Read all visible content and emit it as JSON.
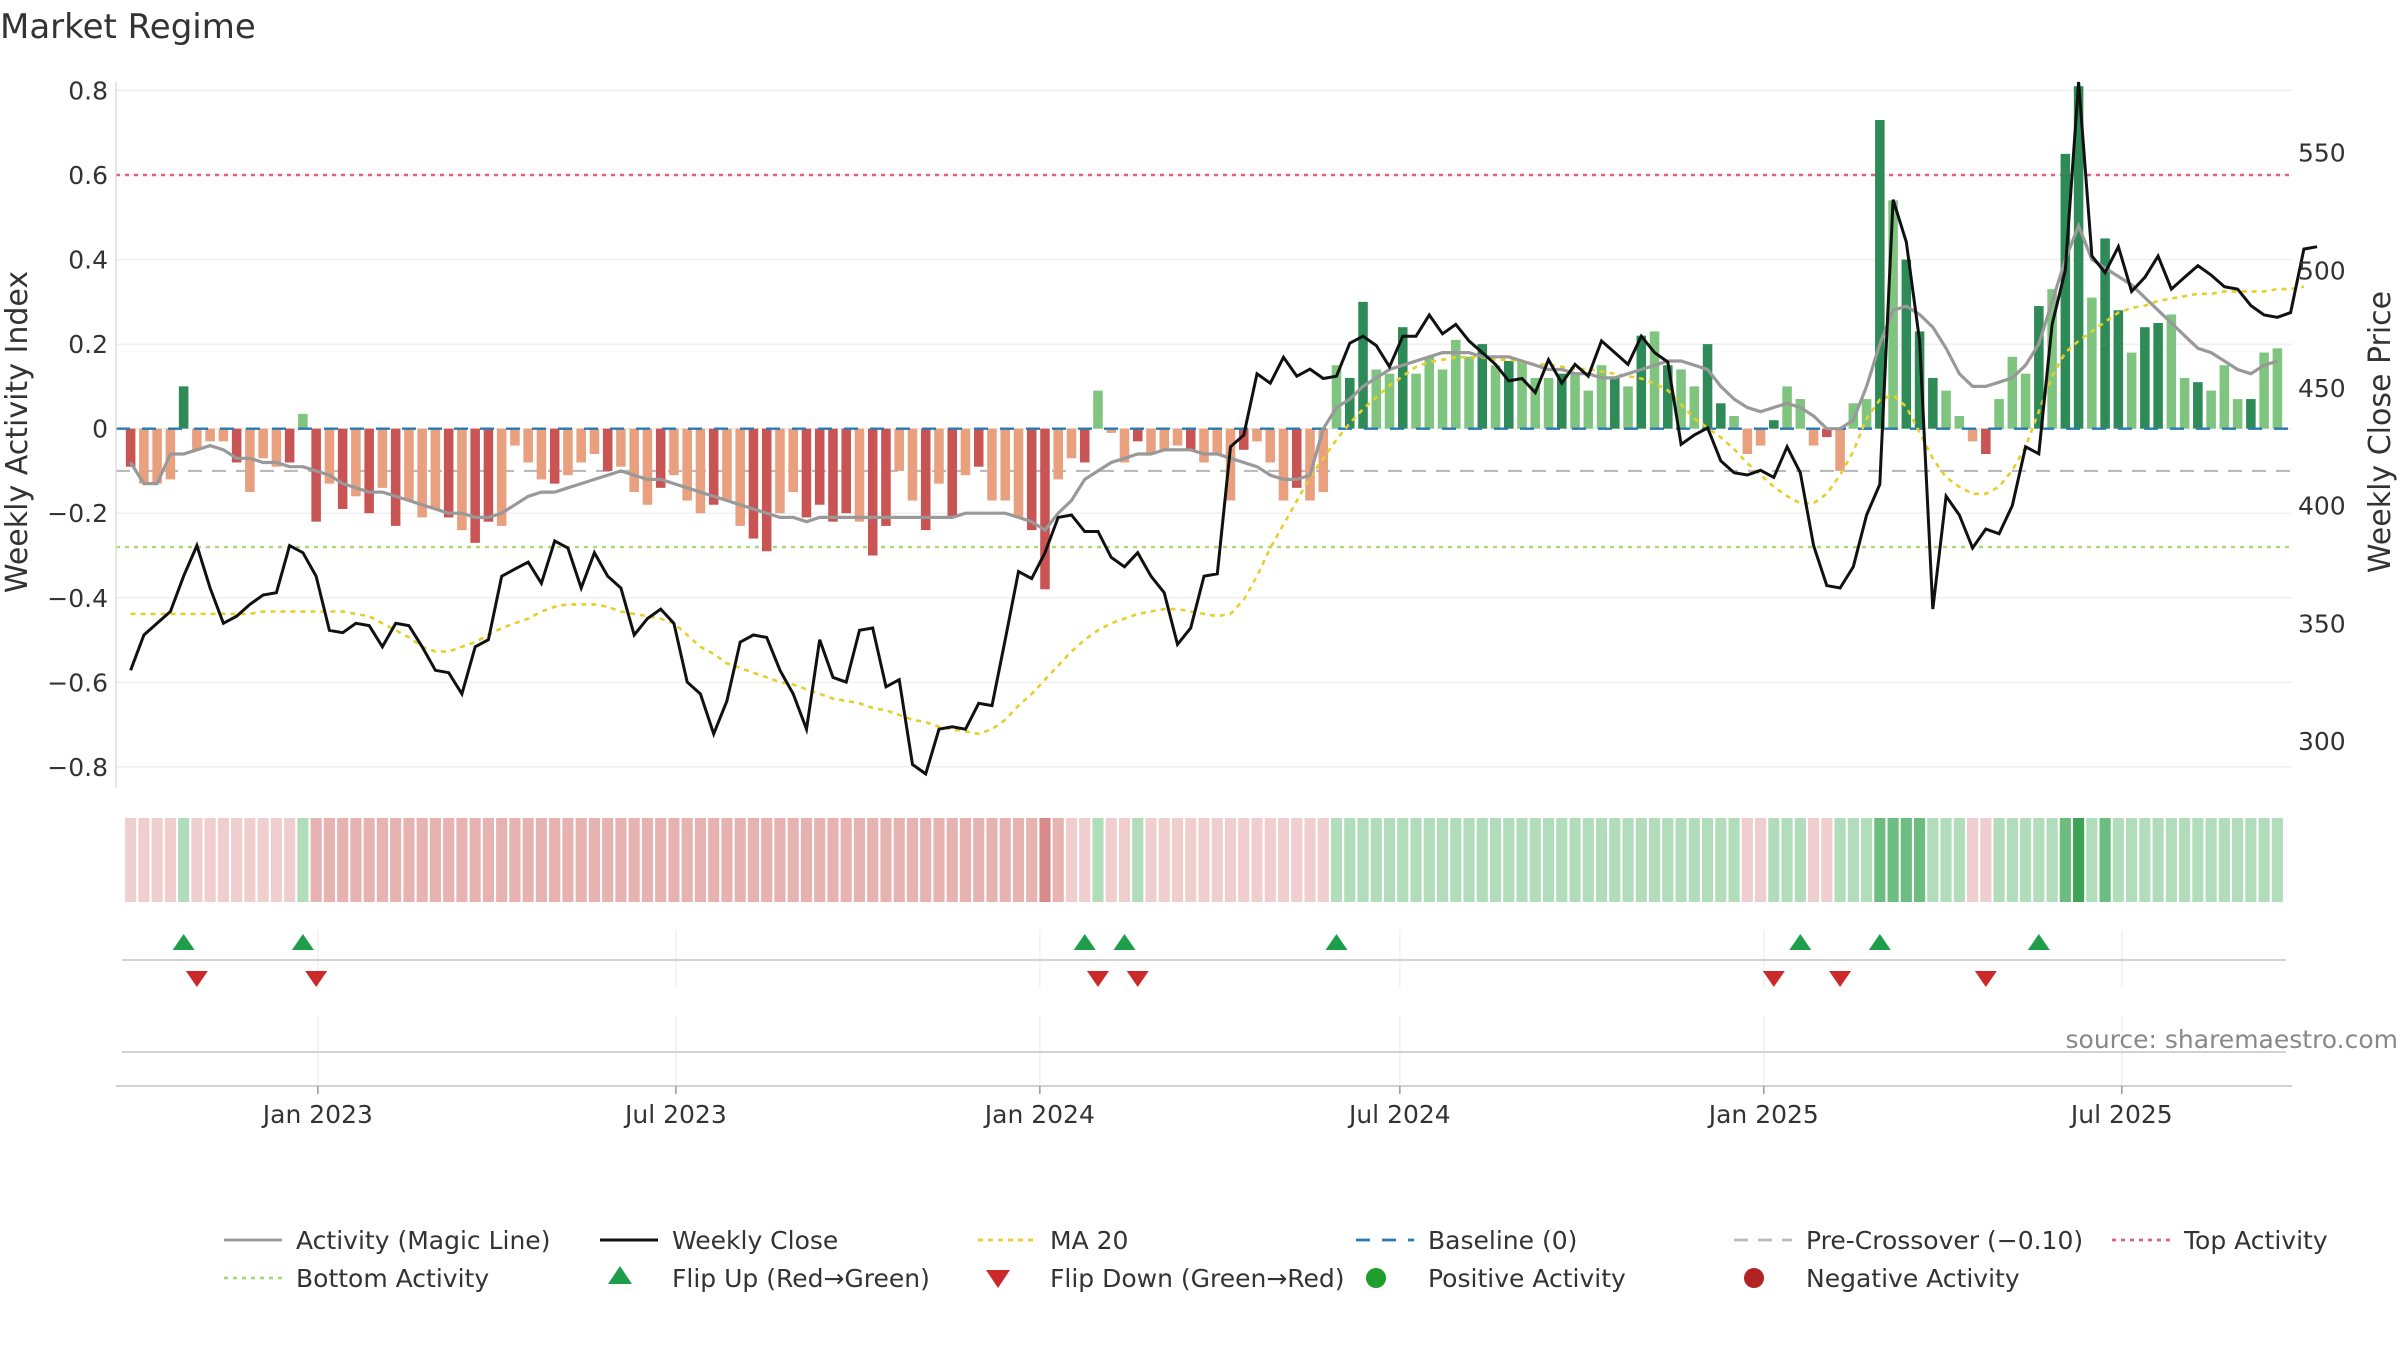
{
  "chart_data": {
    "type": "bar",
    "title": "Market Regime",
    "ylabel_left": "Weekly Activity Index",
    "ylabel_right": "Weekly Close Price",
    "source": "source: sharemaestro.com",
    "x_start": "2022-09-25",
    "x_end": "2025-09-21",
    "x_ticks": [
      {
        "date": "2023-01-01",
        "label": "Jan 2023"
      },
      {
        "date": "2023-07-01",
        "label": "Jul 2023"
      },
      {
        "date": "2024-01-01",
        "label": "Jan 2024"
      },
      {
        "date": "2024-07-01",
        "label": "Jul 2024"
      },
      {
        "date": "2025-01-01",
        "label": "Jan 2025"
      },
      {
        "date": "2025-07-01",
        "label": "Jul 2025"
      }
    ],
    "ylim_left": [
      -0.85,
      0.82
    ],
    "ylim_right": [
      280,
      580
    ],
    "yticks_left": [
      {
        "v": 0.8,
        "label": "0.8"
      },
      {
        "v": 0.6,
        "label": "0.6"
      },
      {
        "v": 0.4,
        "label": "0.4"
      },
      {
        "v": 0.2,
        "label": "0.2"
      },
      {
        "v": 0,
        "label": "0"
      },
      {
        "v": -0.2,
        "label": "−0.2"
      },
      {
        "v": -0.4,
        "label": "−0.4"
      },
      {
        "v": -0.6,
        "label": "−0.6"
      },
      {
        "v": -0.8,
        "label": "−0.8"
      }
    ],
    "yticks_right": [
      {
        "v": 550,
        "label": "550"
      },
      {
        "v": 500,
        "label": "500"
      },
      {
        "v": 450,
        "label": "450"
      },
      {
        "v": 400,
        "label": "400"
      },
      {
        "v": 350,
        "label": "350"
      },
      {
        "v": 300,
        "label": "300"
      }
    ],
    "thresholds": {
      "top_activity": 0.6,
      "bottom_activity": -0.28,
      "pre_crossover": -0.1,
      "baseline": 0
    },
    "colors": {
      "pos_strong": "#2e8b57",
      "pos_light": "#7fc47f",
      "neg_strong": "#c95454",
      "neg_light": "#e8a07e",
      "close": "#111111",
      "magic": "#999999",
      "ma20": "#e6cf2a",
      "baseline": "#2a7ab0",
      "precross": "#bbbbbb",
      "top": "#e0607e",
      "bottom": "#a8d878",
      "flip_up": "#1e9e4a",
      "flip_down": "#cc2a2a",
      "pos_dot": "#1e9e2a",
      "neg_dot": "#b22222"
    },
    "activity": [
      -0.09,
      -0.13,
      -0.13,
      -0.12,
      0.1,
      -0.05,
      -0.03,
      -0.03,
      -0.08,
      -0.15,
      -0.07,
      -0.09,
      -0.08,
      0.035,
      -0.22,
      -0.13,
      -0.19,
      -0.16,
      -0.2,
      -0.14,
      -0.23,
      -0.17,
      -0.21,
      -0.19,
      -0.21,
      -0.24,
      -0.27,
      -0.22,
      -0.23,
      -0.04,
      -0.08,
      -0.12,
      -0.13,
      -0.11,
      -0.08,
      -0.06,
      -0.1,
      -0.09,
      -0.15,
      -0.18,
      -0.14,
      -0.11,
      -0.17,
      -0.2,
      -0.18,
      -0.17,
      -0.23,
      -0.26,
      -0.29,
      -0.2,
      -0.15,
      -0.21,
      -0.18,
      -0.22,
      -0.2,
      -0.22,
      -0.3,
      -0.23,
      -0.1,
      -0.17,
      -0.24,
      -0.13,
      -0.21,
      -0.11,
      -0.09,
      -0.17,
      -0.17,
      -0.21,
      -0.24,
      -0.38,
      -0.12,
      -0.07,
      -0.08,
      0.09,
      -0.01,
      -0.08,
      -0.03,
      -0.06,
      -0.05,
      -0.04,
      -0.05,
      -0.08,
      -0.06,
      -0.17,
      -0.05,
      -0.03,
      -0.08,
      -0.17,
      -0.14,
      -0.17,
      -0.15,
      0.15,
      0.12,
      0.3,
      0.14,
      0.13,
      0.24,
      0.13,
      0.17,
      0.14,
      0.21,
      0.17,
      0.2,
      0.15,
      0.16,
      0.16,
      0.12,
      0.12,
      0.13,
      0.13,
      0.09,
      0.15,
      0.12,
      0.1,
      0.22,
      0.23,
      0.15,
      0.14,
      0.1,
      0.2,
      0.06,
      0.03,
      -0.06,
      -0.04,
      0.02,
      0.1,
      0.07,
      -0.04,
      -0.02,
      -0.1,
      0.06,
      0.07,
      0.73,
      0.54,
      0.4,
      0.23,
      0.12,
      0.09,
      0.03,
      -0.03,
      -0.06,
      0.07,
      0.17,
      0.13,
      0.29,
      0.33,
      0.65,
      0.81,
      0.31,
      0.45,
      0.28,
      0.18,
      0.24,
      0.25,
      0.27,
      0.12,
      0.11,
      0.09,
      0.15,
      0.07,
      0.07,
      0.18,
      0.19
    ],
    "close": [
      330,
      345,
      350,
      355,
      370,
      383,
      365,
      350,
      353,
      358,
      362,
      363,
      383,
      380,
      370,
      347,
      346,
      350,
      349,
      340,
      350,
      349,
      340,
      330,
      329,
      320,
      340,
      343,
      370,
      373,
      376,
      367,
      385,
      382,
      365,
      380,
      370,
      365,
      345,
      352,
      356,
      350,
      325,
      320,
      303,
      317,
      342,
      345,
      344,
      330,
      320,
      305,
      343,
      327,
      325,
      347,
      348,
      323,
      326,
      290,
      286,
      305,
      306,
      305,
      316,
      315,
      343,
      372,
      369,
      380,
      395,
      396,
      389,
      389,
      378,
      374,
      380,
      370,
      363,
      341,
      348,
      370,
      371,
      425,
      430,
      456,
      452,
      463,
      455,
      458,
      454,
      455,
      469,
      472,
      468,
      459,
      472,
      472,
      481,
      473,
      477,
      470,
      465,
      460,
      453,
      454,
      448,
      462,
      452,
      460,
      455,
      470,
      465,
      460,
      472,
      465,
      461,
      426,
      430,
      433,
      419,
      414,
      413,
      415,
      412,
      425,
      414,
      383,
      366,
      365,
      374,
      396,
      409,
      530,
      512,
      470,
      356,
      404,
      396,
      382,
      390,
      388,
      400,
      425,
      422,
      477,
      500,
      580,
      506,
      499,
      510,
      491,
      497,
      506,
      492,
      497,
      502,
      498,
      493,
      492,
      485,
      481,
      480,
      482,
      509,
      510
    ],
    "magic": [
      -0.08,
      -0.13,
      -0.13,
      -0.06,
      -0.06,
      -0.05,
      -0.04,
      -0.05,
      -0.07,
      -0.07,
      -0.08,
      -0.08,
      -0.09,
      -0.09,
      -0.1,
      -0.11,
      -0.13,
      -0.14,
      -0.15,
      -0.15,
      -0.16,
      -0.17,
      -0.18,
      -0.19,
      -0.2,
      -0.2,
      -0.21,
      -0.21,
      -0.2,
      -0.18,
      -0.16,
      -0.15,
      -0.15,
      -0.14,
      -0.13,
      -0.12,
      -0.11,
      -0.1,
      -0.11,
      -0.12,
      -0.12,
      -0.13,
      -0.14,
      -0.15,
      -0.16,
      -0.17,
      -0.18,
      -0.19,
      -0.2,
      -0.21,
      -0.21,
      -0.22,
      -0.21,
      -0.21,
      -0.21,
      -0.21,
      -0.21,
      -0.21,
      -0.21,
      -0.21,
      -0.21,
      -0.21,
      -0.21,
      -0.2,
      -0.2,
      -0.2,
      -0.2,
      -0.21,
      -0.22,
      -0.24,
      -0.2,
      -0.17,
      -0.12,
      -0.1,
      -0.08,
      -0.07,
      -0.06,
      -0.06,
      -0.05,
      -0.05,
      -0.05,
      -0.06,
      -0.06,
      -0.07,
      -0.08,
      -0.09,
      -0.11,
      -0.12,
      -0.12,
      -0.11,
      0.0,
      0.05,
      0.07,
      0.1,
      0.12,
      0.14,
      0.15,
      0.16,
      0.17,
      0.18,
      0.18,
      0.18,
      0.17,
      0.17,
      0.17,
      0.16,
      0.15,
      0.14,
      0.14,
      0.13,
      0.13,
      0.12,
      0.12,
      0.13,
      0.14,
      0.15,
      0.16,
      0.16,
      0.15,
      0.14,
      0.1,
      0.07,
      0.05,
      0.04,
      0.05,
      0.06,
      0.05,
      0.03,
      0.0,
      0.0,
      0.02,
      0.1,
      0.2,
      0.28,
      0.29,
      0.27,
      0.24,
      0.19,
      0.13,
      0.1,
      0.1,
      0.11,
      0.12,
      0.15,
      0.2,
      0.3,
      0.4,
      0.48,
      0.4,
      0.38,
      0.36,
      0.34,
      0.31,
      0.28,
      0.25,
      0.22,
      0.19,
      0.18,
      0.16,
      0.14,
      0.13,
      0.15,
      0.16
    ],
    "ma20": [
      354,
      354,
      354,
      354,
      354,
      354,
      354,
      354,
      354,
      354,
      355,
      355,
      355,
      355,
      355,
      355,
      355,
      354,
      353,
      350,
      347,
      344,
      340,
      338,
      338,
      340,
      342,
      345,
      348,
      350,
      352,
      355,
      357,
      358,
      358,
      358,
      357,
      355,
      354,
      353,
      352,
      350,
      345,
      340,
      337,
      333,
      331,
      329,
      327,
      325,
      324,
      322,
      320,
      318,
      317,
      316,
      314,
      313,
      311,
      309,
      308,
      306,
      305,
      304,
      303,
      305,
      309,
      315,
      320,
      326,
      332,
      338,
      343,
      347,
      350,
      352,
      354,
      355,
      356,
      356,
      355,
      354,
      353,
      354,
      360,
      370,
      382,
      392,
      402,
      412,
      420,
      428,
      435,
      441,
      446,
      451,
      455,
      459,
      461,
      462,
      463,
      463,
      463,
      462,
      462,
      461,
      460,
      460,
      459,
      458,
      458,
      457,
      456,
      455,
      454,
      452,
      449,
      443,
      437,
      433,
      429,
      424,
      418,
      413,
      408,
      404,
      401,
      401,
      405,
      413,
      423,
      437,
      445,
      447,
      442,
      431,
      420,
      412,
      408,
      405,
      405,
      408,
      415,
      425,
      440,
      455,
      465,
      470,
      474,
      478,
      482,
      484,
      485,
      487,
      488,
      489,
      490,
      490,
      491,
      491,
      491,
      491,
      492,
      492,
      493
    ],
    "regime": [
      -1,
      -1,
      -1,
      -1,
      1,
      -1,
      -1,
      -1,
      -1,
      -1,
      -1,
      -1,
      -1,
      1,
      -2,
      -2,
      -2,
      -2,
      -2,
      -2,
      -2,
      -2,
      -2,
      -2,
      -2,
      -2,
      -2,
      -2,
      -2,
      -2,
      -2,
      -2,
      -2,
      -2,
      -2,
      -2,
      -2,
      -2,
      -2,
      -2,
      -2,
      -2,
      -2,
      -2,
      -2,
      -2,
      -2,
      -2,
      -2,
      -2,
      -2,
      -2,
      -2,
      -2,
      -2,
      -2,
      -2,
      -2,
      -2,
      -2,
      -2,
      -2,
      -2,
      -2,
      -2,
      -2,
      -2,
      -2,
      -2,
      -3,
      -2,
      -1,
      -1,
      1,
      -1,
      -1,
      1,
      -1,
      -1,
      -1,
      -1,
      -1,
      -1,
      -1,
      -1,
      -1,
      -1,
      -1,
      -1,
      -1,
      -1,
      1,
      1,
      1,
      1,
      1,
      1,
      1,
      1,
      1,
      1,
      1,
      1,
      1,
      1,
      1,
      1,
      1,
      1,
      1,
      1,
      1,
      1,
      1,
      1,
      1,
      1,
      1,
      1,
      1,
      1,
      1,
      -1,
      -1,
      1,
      1,
      1,
      -1,
      -1,
      1,
      1,
      1,
      2,
      2,
      2,
      2,
      1,
      1,
      1,
      -1,
      -1,
      1,
      1,
      1,
      1,
      1,
      2,
      3,
      1,
      2,
      1,
      1,
      1,
      1,
      1,
      1,
      1,
      1,
      1,
      1,
      1,
      1,
      1
    ],
    "flips_up": [
      4,
      13,
      72,
      75,
      91,
      126,
      132,
      144
    ],
    "flips_down": [
      5,
      14,
      73,
      76,
      124,
      129,
      140
    ],
    "legend": [
      {
        "key": "magic",
        "label": "Activity (Magic Line)"
      },
      {
        "key": "close",
        "label": "Weekly Close"
      },
      {
        "key": "ma20",
        "label": "MA 20"
      },
      {
        "key": "baseline",
        "label": "Baseline (0)"
      },
      {
        "key": "precross",
        "label": "Pre-Crossover (−0.10)"
      },
      {
        "key": "top",
        "label": "Top Activity"
      },
      {
        "key": "bottom",
        "label": "Bottom Activity"
      },
      {
        "key": "flip_up",
        "label": "Flip Up (Red→Green)"
      },
      {
        "key": "flip_down",
        "label": "Flip Down (Green→Red)"
      },
      {
        "key": "pos_dot",
        "label": "Positive Activity"
      },
      {
        "key": "neg_dot",
        "label": "Negative Activity"
      }
    ]
  }
}
